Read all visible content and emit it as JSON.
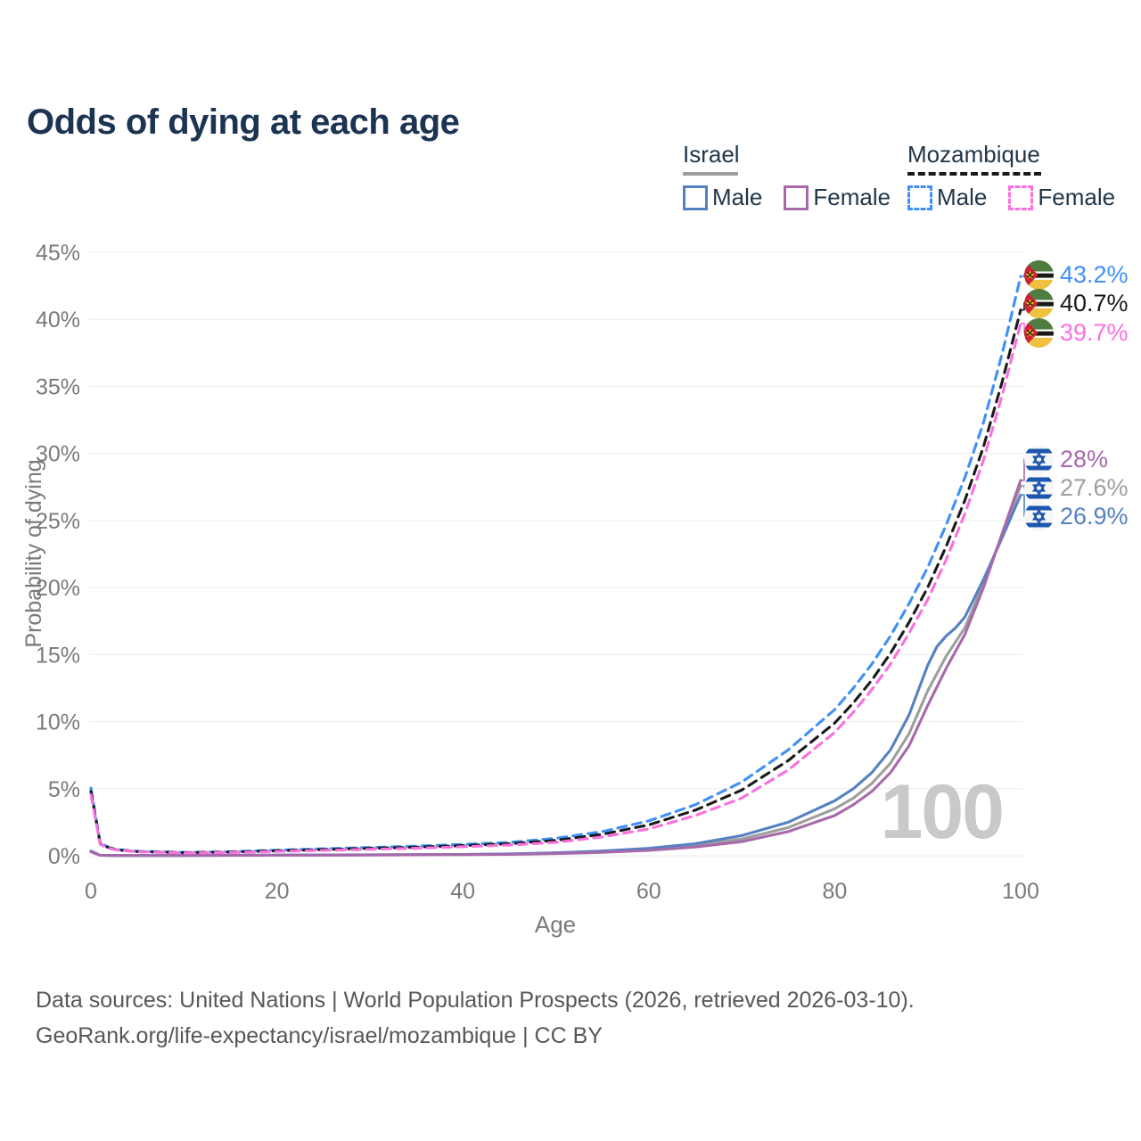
{
  "title": "Odds of dying at each age",
  "legend": {
    "groups": [
      {
        "country": "Israel",
        "line_style": "solid",
        "items": [
          {
            "label": "Male"
          },
          {
            "label": "Female"
          }
        ]
      },
      {
        "country": "Mozambique",
        "line_style": "dashed",
        "items": [
          {
            "label": "Male"
          },
          {
            "label": "Female"
          }
        ]
      }
    ]
  },
  "watermark_age": "100",
  "footer": {
    "line1": "Data sources: United Nations | World Population Prospects (2026, retrieved 2026-03-10).",
    "line2": "GeoRank.org/life-expectancy/israel/mozambique | CC BY"
  },
  "chart_data": {
    "type": "line",
    "title": "Odds of dying at each age",
    "xlabel": "Age",
    "ylabel": "Probability of dying",
    "xlim": [
      0,
      100
    ],
    "ylim": [
      0,
      45
    ],
    "x_ticks": [
      0,
      20,
      40,
      60,
      80,
      100
    ],
    "y_ticks": [
      0,
      5,
      10,
      15,
      20,
      25,
      30,
      35,
      40,
      45
    ],
    "y_tick_suffix": "%",
    "grid": "horizontal",
    "legend_position": "top-right",
    "series": [
      {
        "name": "Mozambique Male",
        "country": "Mozambique",
        "sex": "male",
        "line": "dashed",
        "color": "#4090f7",
        "end_label": "43.2%",
        "points": [
          [
            0,
            5.05
          ],
          [
            1,
            0.95
          ],
          [
            2,
            0.6
          ],
          [
            3,
            0.45
          ],
          [
            5,
            0.33
          ],
          [
            10,
            0.25
          ],
          [
            15,
            0.3
          ],
          [
            20,
            0.42
          ],
          [
            25,
            0.52
          ],
          [
            30,
            0.62
          ],
          [
            35,
            0.72
          ],
          [
            40,
            0.85
          ],
          [
            45,
            1.0
          ],
          [
            50,
            1.3
          ],
          [
            55,
            1.8
          ],
          [
            60,
            2.6
          ],
          [
            65,
            3.8
          ],
          [
            70,
            5.5
          ],
          [
            75,
            7.9
          ],
          [
            80,
            10.9
          ],
          [
            82,
            12.5
          ],
          [
            84,
            14.3
          ],
          [
            86,
            16.4
          ],
          [
            88,
            18.8
          ],
          [
            90,
            21.5
          ],
          [
            92,
            24.7
          ],
          [
            94,
            28.2
          ],
          [
            96,
            32.3
          ],
          [
            98,
            37.4
          ],
          [
            100,
            43.2
          ]
        ]
      },
      {
        "name": "Mozambique (both sexes)",
        "country": "Mozambique",
        "sex": "both",
        "line": "dashed",
        "color": "#1a1a1a",
        "end_label": "40.7%",
        "points": [
          [
            0,
            4.8
          ],
          [
            1,
            0.9
          ],
          [
            2,
            0.57
          ],
          [
            3,
            0.43
          ],
          [
            5,
            0.31
          ],
          [
            10,
            0.23
          ],
          [
            15,
            0.27
          ],
          [
            20,
            0.37
          ],
          [
            25,
            0.46
          ],
          [
            30,
            0.55
          ],
          [
            35,
            0.64
          ],
          [
            40,
            0.76
          ],
          [
            45,
            0.9
          ],
          [
            50,
            1.15
          ],
          [
            55,
            1.6
          ],
          [
            60,
            2.3
          ],
          [
            65,
            3.4
          ],
          [
            70,
            4.9
          ],
          [
            75,
            7.1
          ],
          [
            80,
            9.9
          ],
          [
            82,
            11.4
          ],
          [
            84,
            13.1
          ],
          [
            86,
            15.1
          ],
          [
            88,
            17.4
          ],
          [
            90,
            20.0
          ],
          [
            92,
            23.1
          ],
          [
            94,
            26.5
          ],
          [
            96,
            30.5
          ],
          [
            98,
            35.3
          ],
          [
            100,
            40.7
          ]
        ]
      },
      {
        "name": "Mozambique Female",
        "country": "Mozambique",
        "sex": "female",
        "line": "dashed",
        "color": "#fa70dd",
        "end_label": "39.7%",
        "points": [
          [
            0,
            4.55
          ],
          [
            1,
            0.85
          ],
          [
            2,
            0.54
          ],
          [
            3,
            0.41
          ],
          [
            5,
            0.29
          ],
          [
            10,
            0.21
          ],
          [
            15,
            0.24
          ],
          [
            20,
            0.32
          ],
          [
            25,
            0.4
          ],
          [
            30,
            0.48
          ],
          [
            35,
            0.56
          ],
          [
            40,
            0.67
          ],
          [
            45,
            0.8
          ],
          [
            50,
            1.0
          ],
          [
            55,
            1.4
          ],
          [
            60,
            2.0
          ],
          [
            65,
            3.0
          ],
          [
            70,
            4.3
          ],
          [
            75,
            6.4
          ],
          [
            80,
            9.2
          ],
          [
            82,
            10.7
          ],
          [
            84,
            12.4
          ],
          [
            86,
            14.3
          ],
          [
            88,
            16.6
          ],
          [
            90,
            19.1
          ],
          [
            92,
            22.1
          ],
          [
            94,
            25.5
          ],
          [
            96,
            29.5
          ],
          [
            98,
            34.3
          ],
          [
            100,
            39.7
          ]
        ]
      },
      {
        "name": "Israel Female",
        "country": "Israel",
        "sex": "female",
        "line": "solid",
        "color": "#a869ab",
        "end_label": "28%",
        "points": [
          [
            0,
            0.3
          ],
          [
            1,
            0.03
          ],
          [
            3,
            0.02
          ],
          [
            10,
            0.02
          ],
          [
            20,
            0.03
          ],
          [
            30,
            0.05
          ],
          [
            40,
            0.08
          ],
          [
            45,
            0.1
          ],
          [
            50,
            0.16
          ],
          [
            55,
            0.25
          ],
          [
            60,
            0.4
          ],
          [
            65,
            0.65
          ],
          [
            70,
            1.05
          ],
          [
            75,
            1.8
          ],
          [
            80,
            3.0
          ],
          [
            82,
            3.8
          ],
          [
            84,
            4.8
          ],
          [
            86,
            6.2
          ],
          [
            88,
            8.2
          ],
          [
            90,
            11.2
          ],
          [
            92,
            14.0
          ],
          [
            94,
            16.5
          ],
          [
            96,
            20.0
          ],
          [
            98,
            24.0
          ],
          [
            100,
            28.0
          ]
        ]
      },
      {
        "name": "Israel (both sexes)",
        "country": "Israel",
        "sex": "both",
        "line": "solid",
        "color": "#9e9e9e",
        "end_label": "27.6%",
        "points": [
          [
            0,
            0.32
          ],
          [
            1,
            0.03
          ],
          [
            3,
            0.02
          ],
          [
            10,
            0.02
          ],
          [
            20,
            0.04
          ],
          [
            30,
            0.06
          ],
          [
            40,
            0.09
          ],
          [
            45,
            0.12
          ],
          [
            50,
            0.19
          ],
          [
            55,
            0.3
          ],
          [
            60,
            0.47
          ],
          [
            65,
            0.77
          ],
          [
            70,
            1.25
          ],
          [
            75,
            2.1
          ],
          [
            80,
            3.5
          ],
          [
            82,
            4.3
          ],
          [
            84,
            5.4
          ],
          [
            86,
            6.9
          ],
          [
            88,
            9.1
          ],
          [
            90,
            12.3
          ],
          [
            92,
            14.9
          ],
          [
            94,
            17.0
          ],
          [
            96,
            20.3
          ],
          [
            98,
            23.9
          ],
          [
            100,
            27.6
          ]
        ]
      },
      {
        "name": "Israel Male",
        "country": "Israel",
        "sex": "male",
        "line": "solid",
        "color": "#5581c2",
        "end_label": "26.9%",
        "points": [
          [
            0,
            0.35
          ],
          [
            1,
            0.03
          ],
          [
            3,
            0.02
          ],
          [
            10,
            0.02
          ],
          [
            20,
            0.05
          ],
          [
            30,
            0.07
          ],
          [
            40,
            0.1
          ],
          [
            45,
            0.14
          ],
          [
            50,
            0.22
          ],
          [
            55,
            0.35
          ],
          [
            60,
            0.55
          ],
          [
            65,
            0.9
          ],
          [
            70,
            1.5
          ],
          [
            75,
            2.5
          ],
          [
            80,
            4.1
          ],
          [
            82,
            5.0
          ],
          [
            84,
            6.2
          ],
          [
            86,
            7.9
          ],
          [
            88,
            10.5
          ],
          [
            90,
            14.2
          ],
          [
            91,
            15.6
          ],
          [
            92,
            16.4
          ],
          [
            93,
            17.0
          ],
          [
            94,
            17.8
          ],
          [
            96,
            20.6
          ],
          [
            98,
            23.7
          ],
          [
            100,
            26.9
          ]
        ]
      }
    ]
  }
}
